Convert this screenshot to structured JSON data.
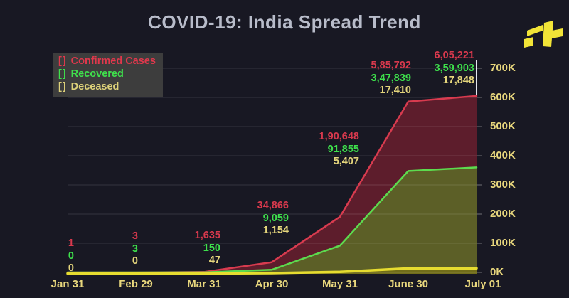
{
  "header": {
    "title": "COVID-19: India Spread Trend",
    "logo_name": "indiatimes-logo",
    "logo_color": "#f2e437"
  },
  "legend": {
    "items": [
      {
        "marker": "[]",
        "label": "Confirmed Cases",
        "color": "#e0384c"
      },
      {
        "marker": "[]",
        "label": "Recovered",
        "color": "#3fe04c"
      },
      {
        "marker": "[]",
        "label": "Deceased",
        "color": "#ded27a"
      }
    ]
  },
  "chart_data": {
    "type": "area",
    "title": "COVID-19: India Spread Trend",
    "categories": [
      "Jan 31",
      "Feb 29",
      "Mar 31",
      "Apr 30",
      "May 31",
      "June 30",
      "July 01"
    ],
    "series": [
      {
        "name": "Confirmed Cases",
        "line_color": "#d83b4f",
        "fill_color": "#5d1d2c",
        "label_color": "#d8394d",
        "values": [
          1,
          3,
          1635,
          34866,
          190648,
          585792,
          605221
        ],
        "labels": [
          "1",
          "3",
          "1,635",
          "34,866",
          "1,90,648",
          "5,85,792",
          "6,05,221"
        ]
      },
      {
        "name": "Recovered",
        "line_color": "#5ddb4e",
        "fill_color": "#5c5f27",
        "label_color": "#3ee04c",
        "values": [
          0,
          3,
          150,
          9059,
          91855,
          347839,
          359903
        ],
        "labels": [
          "0",
          "3",
          "150",
          "9,059",
          "91,855",
          "3,47,839",
          "3,59,903"
        ]
      },
      {
        "name": "Deceased",
        "line_color": "#e6dc30",
        "fill_color": "#716d1a",
        "label_color": "#e5d67c",
        "values": [
          0,
          0,
          47,
          1154,
          5407,
          17410,
          17848
        ],
        "labels": [
          "0",
          "0",
          "47",
          "1,154",
          "5,407",
          "17,410",
          "17,848"
        ]
      }
    ],
    "y_ticks": [
      "700K",
      "600K",
      "500K",
      "400K",
      "300K",
      "200K",
      "100K",
      "0K"
    ],
    "ylim": [
      0,
      700000
    ],
    "grid": true,
    "gridline_color": "rgba(255,255,255,0.13)",
    "cursor_line_color": "#e4e6ee",
    "legend_position": "top-left",
    "axis_text_color": "#e8d77d",
    "background_color": "#181823"
  }
}
